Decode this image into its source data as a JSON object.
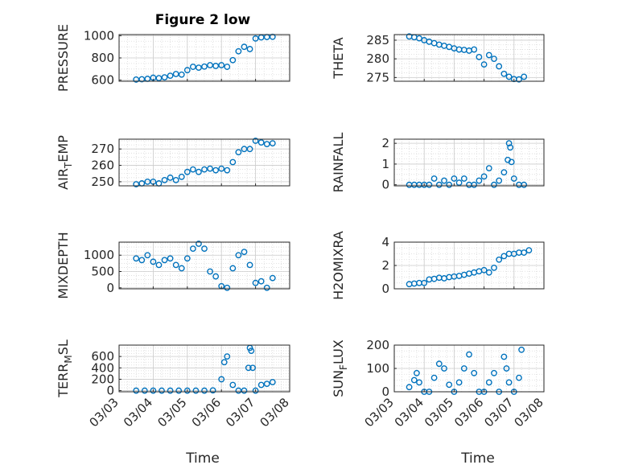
{
  "figure": {
    "title": "Figure 2 low",
    "x_axis_label": "Time"
  },
  "style": {
    "marker_color": "#0072BD",
    "axes_color": "#262626",
    "grid_color": "#d9d9d9"
  },
  "chart_data": [
    {
      "type": "scatter",
      "ylabel": "PRESSURE",
      "ylim": [
        590,
        1010
      ],
      "yticks": [
        600,
        800,
        1000
      ],
      "xlim": [
        "03/03",
        "03/08"
      ],
      "grid": true,
      "marker": "open-circle",
      "points": [
        [
          "03/03 12:00",
          605
        ],
        [
          "03/03 16:00",
          608
        ],
        [
          "03/03 20:00",
          612
        ],
        [
          "03/04 00:00",
          622
        ],
        [
          "03/04 04:00",
          618
        ],
        [
          "03/04 08:00",
          625
        ],
        [
          "03/04 12:00",
          640
        ],
        [
          "03/04 16:00",
          655
        ],
        [
          "03/04 20:00",
          650
        ],
        [
          "03/05 00:00",
          690
        ],
        [
          "03/05 04:00",
          720
        ],
        [
          "03/05 08:00",
          712
        ],
        [
          "03/05 12:00",
          722
        ],
        [
          "03/05 16:00",
          735
        ],
        [
          "03/05 20:00",
          728
        ],
        [
          "03/06 00:00",
          735
        ],
        [
          "03/06 04:00",
          720
        ],
        [
          "03/06 08:00",
          780
        ],
        [
          "03/06 12:00",
          860
        ],
        [
          "03/06 16:00",
          900
        ],
        [
          "03/06 20:00",
          880
        ],
        [
          "03/07 00:00",
          975
        ],
        [
          "03/07 04:00",
          985
        ],
        [
          "03/07 08:00",
          988
        ],
        [
          "03/07 12:00",
          990
        ]
      ]
    },
    {
      "type": "scatter",
      "ylabel": "THETA",
      "ylim": [
        274,
        286.5
      ],
      "yticks": [
        275,
        280,
        285
      ],
      "xlim": [
        "03/03",
        "03/08"
      ],
      "grid": true,
      "marker": "open-circle",
      "points": [
        [
          "03/03 12:00",
          286
        ],
        [
          "03/03 16:00",
          285.8
        ],
        [
          "03/03 20:00",
          285.5
        ],
        [
          "03/04 00:00",
          285
        ],
        [
          "03/04 04:00",
          284.6
        ],
        [
          "03/04 08:00",
          284.2
        ],
        [
          "03/04 12:00",
          283.8
        ],
        [
          "03/04 16:00",
          283.5
        ],
        [
          "03/04 20:00",
          283.2
        ],
        [
          "03/05 00:00",
          282.8
        ],
        [
          "03/05 04:00",
          282.5
        ],
        [
          "03/05 08:00",
          282.4
        ],
        [
          "03/05 12:00",
          282.2
        ],
        [
          "03/05 16:00",
          282.5
        ],
        [
          "03/05 20:00",
          280.5
        ],
        [
          "03/06 00:00",
          278.5
        ],
        [
          "03/06 04:00",
          281
        ],
        [
          "03/06 08:00",
          280
        ],
        [
          "03/06 12:00",
          278
        ],
        [
          "03/06 16:00",
          276
        ],
        [
          "03/06 20:00",
          275.2
        ],
        [
          "03/07 00:00",
          274.6
        ],
        [
          "03/07 04:00",
          274.5
        ],
        [
          "03/07 08:00",
          275.2
        ]
      ]
    },
    {
      "type": "scatter",
      "ylabel_main": "AIR",
      "ylabel_sub": "T",
      "ylabel_rest": "EMP",
      "ylim": [
        247.5,
        276
      ],
      "yticks": [
        250,
        260,
        270
      ],
      "xlim": [
        "03/03",
        "03/08"
      ],
      "grid": true,
      "marker": "open-circle",
      "points": [
        [
          "03/03 12:00",
          248.5
        ],
        [
          "03/03 16:00",
          249
        ],
        [
          "03/03 20:00",
          250
        ],
        [
          "03/04 00:00",
          250
        ],
        [
          "03/04 04:00",
          249
        ],
        [
          "03/04 08:00",
          251
        ],
        [
          "03/04 12:00",
          252.5
        ],
        [
          "03/04 16:00",
          251
        ],
        [
          "03/04 20:00",
          253
        ],
        [
          "03/05 00:00",
          256
        ],
        [
          "03/05 04:00",
          257.5
        ],
        [
          "03/05 08:00",
          256
        ],
        [
          "03/05 12:00",
          257.5
        ],
        [
          "03/05 16:00",
          258
        ],
        [
          "03/05 20:00",
          257
        ],
        [
          "03/06 00:00",
          258
        ],
        [
          "03/06 04:00",
          257
        ],
        [
          "03/06 08:00",
          262
        ],
        [
          "03/06 12:00",
          268
        ],
        [
          "03/06 16:00",
          270
        ],
        [
          "03/06 20:00",
          270
        ],
        [
          "03/07 00:00",
          275
        ],
        [
          "03/07 04:00",
          274
        ],
        [
          "03/07 08:00",
          273
        ],
        [
          "03/07 12:00",
          273.5
        ]
      ]
    },
    {
      "type": "scatter",
      "ylabel": "RAINFALL",
      "ylim": [
        -0.05,
        2.2
      ],
      "yticks": [
        0,
        1,
        2
      ],
      "xlim": [
        "03/03",
        "03/08"
      ],
      "grid": true,
      "marker": "open-circle",
      "points": [
        [
          "03/03 12:00",
          0
        ],
        [
          "03/03 16:00",
          0
        ],
        [
          "03/03 20:00",
          0
        ],
        [
          "03/04 00:00",
          0
        ],
        [
          "03/04 04:00",
          0
        ],
        [
          "03/04 08:00",
          0.3
        ],
        [
          "03/04 12:00",
          0
        ],
        [
          "03/04 16:00",
          0.2
        ],
        [
          "03/04 20:00",
          0
        ],
        [
          "03/05 00:00",
          0.3
        ],
        [
          "03/05 04:00",
          0.1
        ],
        [
          "03/05 08:00",
          0.3
        ],
        [
          "03/05 12:00",
          0
        ],
        [
          "03/05 16:00",
          0
        ],
        [
          "03/05 20:00",
          0.2
        ],
        [
          "03/06 00:00",
          0.4
        ],
        [
          "03/06 04:00",
          0.8
        ],
        [
          "03/06 08:00",
          0
        ],
        [
          "03/06 12:00",
          0.2
        ],
        [
          "03/06 16:00",
          0.6
        ],
        [
          "03/06 19:00",
          1.2
        ],
        [
          "03/06 20:00",
          2.0
        ],
        [
          "03/06 21:00",
          1.8
        ],
        [
          "03/06 22:00",
          1.1
        ],
        [
          "03/07 00:00",
          0.3
        ],
        [
          "03/07 04:00",
          0
        ],
        [
          "03/07 08:00",
          0
        ]
      ]
    },
    {
      "type": "scatter",
      "ylabel": "MIXDEPTH",
      "ylim": [
        -30,
        1400
      ],
      "yticks": [
        0,
        500,
        1000
      ],
      "xlim": [
        "03/03",
        "03/08"
      ],
      "grid": true,
      "marker": "open-circle",
      "points": [
        [
          "03/03 12:00",
          900
        ],
        [
          "03/03 16:00",
          850
        ],
        [
          "03/03 20:00",
          1000
        ],
        [
          "03/04 00:00",
          800
        ],
        [
          "03/04 04:00",
          700
        ],
        [
          "03/04 08:00",
          850
        ],
        [
          "03/04 12:00",
          900
        ],
        [
          "03/04 16:00",
          700
        ],
        [
          "03/04 20:00",
          600
        ],
        [
          "03/05 00:00",
          900
        ],
        [
          "03/05 04:00",
          1200
        ],
        [
          "03/05 08:00",
          1350
        ],
        [
          "03/05 12:00",
          1200
        ],
        [
          "03/05 16:00",
          500
        ],
        [
          "03/05 20:00",
          350
        ],
        [
          "03/06 00:00",
          50
        ],
        [
          "03/06 04:00",
          0
        ],
        [
          "03/06 08:00",
          600
        ],
        [
          "03/06 12:00",
          1000
        ],
        [
          "03/06 16:00",
          1100
        ],
        [
          "03/06 20:00",
          700
        ],
        [
          "03/07 00:00",
          150
        ],
        [
          "03/07 04:00",
          200
        ],
        [
          "03/07 08:00",
          0
        ],
        [
          "03/07 12:00",
          300
        ]
      ]
    },
    {
      "type": "scatter",
      "ylabel": "H2OMIXRA",
      "ylim": [
        0,
        4
      ],
      "yticks": [
        0,
        2,
        4
      ],
      "xlim": [
        "03/03",
        "03/08"
      ],
      "grid": true,
      "marker": "open-circle",
      "points": [
        [
          "03/03 12:00",
          0.4
        ],
        [
          "03/03 16:00",
          0.45
        ],
        [
          "03/03 20:00",
          0.5
        ],
        [
          "03/04 00:00",
          0.5
        ],
        [
          "03/04 04:00",
          0.8
        ],
        [
          "03/04 08:00",
          0.85
        ],
        [
          "03/04 12:00",
          0.95
        ],
        [
          "03/04 16:00",
          0.9
        ],
        [
          "03/04 20:00",
          1.0
        ],
        [
          "03/05 00:00",
          1.05
        ],
        [
          "03/05 04:00",
          1.1
        ],
        [
          "03/05 08:00",
          1.2
        ],
        [
          "03/05 12:00",
          1.3
        ],
        [
          "03/05 16:00",
          1.4
        ],
        [
          "03/05 20:00",
          1.5
        ],
        [
          "03/06 00:00",
          1.6
        ],
        [
          "03/06 04:00",
          1.4
        ],
        [
          "03/06 08:00",
          1.8
        ],
        [
          "03/06 12:00",
          2.5
        ],
        [
          "03/06 16:00",
          2.8
        ],
        [
          "03/06 20:00",
          3.0
        ],
        [
          "03/07 00:00",
          3.0
        ],
        [
          "03/07 04:00",
          3.1
        ],
        [
          "03/07 08:00",
          3.1
        ],
        [
          "03/07 12:00",
          3.3
        ]
      ]
    },
    {
      "type": "scatter",
      "ylabel_main": "TERR",
      "ylabel_sub": "M",
      "ylabel_rest": "SL",
      "ylim": [
        -20,
        800
      ],
      "yticks": [
        0,
        200,
        400,
        600
      ],
      "xlim": [
        "03/03",
        "03/08"
      ],
      "xticks": [
        "03/03",
        "03/04",
        "03/05",
        "03/06",
        "03/07",
        "03/08"
      ],
      "grid": true,
      "marker": "open-circle",
      "points": [
        [
          "03/03 12:00",
          0
        ],
        [
          "03/03 18:00",
          0
        ],
        [
          "03/04 00:00",
          0
        ],
        [
          "03/04 06:00",
          0
        ],
        [
          "03/04 12:00",
          0
        ],
        [
          "03/04 18:00",
          0
        ],
        [
          "03/05 00:00",
          0
        ],
        [
          "03/05 06:00",
          0
        ],
        [
          "03/05 12:00",
          0
        ],
        [
          "03/05 18:00",
          5
        ],
        [
          "03/06 00:00",
          200
        ],
        [
          "03/06 02:00",
          500
        ],
        [
          "03/06 04:00",
          600
        ],
        [
          "03/06 08:00",
          100
        ],
        [
          "03/06 12:00",
          0
        ],
        [
          "03/06 16:00",
          0
        ],
        [
          "03/06 19:00",
          400
        ],
        [
          "03/06 20:00",
          750
        ],
        [
          "03/06 21:00",
          700
        ],
        [
          "03/06 22:00",
          400
        ],
        [
          "03/07 00:00",
          0
        ],
        [
          "03/07 04:00",
          100
        ],
        [
          "03/07 08:00",
          120
        ],
        [
          "03/07 12:00",
          150
        ]
      ]
    },
    {
      "type": "scatter",
      "ylabel_main": "SUN",
      "ylabel_sub": "F",
      "ylabel_rest": "LUX",
      "ylim": [
        0,
        200
      ],
      "yticks": [
        0,
        100,
        200
      ],
      "xlim": [
        "03/03",
        "03/08"
      ],
      "xticks": [
        "03/03",
        "03/04",
        "03/05",
        "03/06",
        "03/07",
        "03/08"
      ],
      "grid": true,
      "marker": "open-circle",
      "points": [
        [
          "03/03 12:00",
          20
        ],
        [
          "03/03 16:00",
          50
        ],
        [
          "03/03 18:00",
          80
        ],
        [
          "03/03 20:00",
          40
        ],
        [
          "03/04 00:00",
          0
        ],
        [
          "03/04 04:00",
          0
        ],
        [
          "03/04 08:00",
          60
        ],
        [
          "03/04 12:00",
          120
        ],
        [
          "03/04 16:00",
          100
        ],
        [
          "03/04 20:00",
          30
        ],
        [
          "03/05 00:00",
          0
        ],
        [
          "03/05 04:00",
          40
        ],
        [
          "03/05 08:00",
          100
        ],
        [
          "03/05 12:00",
          160
        ],
        [
          "03/05 16:00",
          80
        ],
        [
          "03/05 20:00",
          0
        ],
        [
          "03/06 00:00",
          0
        ],
        [
          "03/06 04:00",
          40
        ],
        [
          "03/06 08:00",
          80
        ],
        [
          "03/06 12:00",
          0
        ],
        [
          "03/06 16:00",
          150
        ],
        [
          "03/06 18:00",
          100
        ],
        [
          "03/06 20:00",
          40
        ],
        [
          "03/07 00:00",
          0
        ],
        [
          "03/07 04:00",
          60
        ],
        [
          "03/07 06:00",
          180
        ]
      ]
    }
  ]
}
